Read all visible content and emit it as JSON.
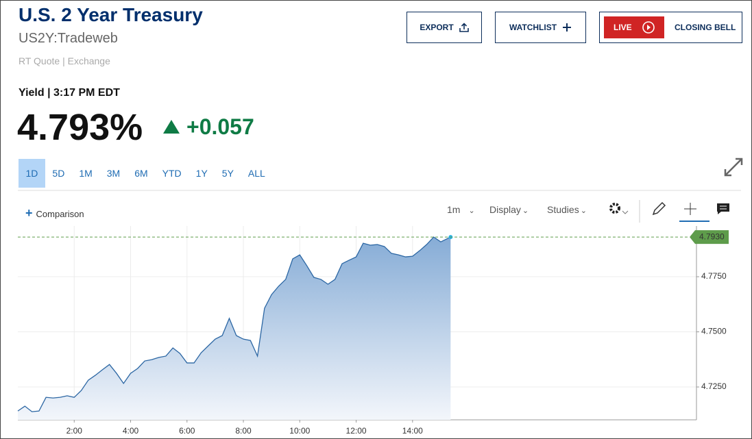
{
  "header": {
    "title": "U.S. 2 Year Treasury",
    "symbol": "US2Y:Tradeweb",
    "quote_source": "RT Quote | Exchange"
  },
  "actions": {
    "export": "EXPORT",
    "watchlist": "WATCHLIST",
    "live": "LIVE",
    "closing_bell": "CLOSING BELL"
  },
  "quote": {
    "label": "Yield | 3:17 PM EDT",
    "price": "4.793%",
    "change": "+0.057"
  },
  "ranges": [
    "1D",
    "5D",
    "1M",
    "3M",
    "6M",
    "YTD",
    "1Y",
    "5Y",
    "ALL"
  ],
  "toolbar": {
    "comparison": "Comparison",
    "interval": "1m",
    "display": "Display",
    "studies": "Studies"
  },
  "chart_data": {
    "type": "area",
    "color": "#2b66a3",
    "x": [
      0,
      0.25,
      0.5,
      0.75,
      1,
      1.25,
      1.5,
      1.75,
      2,
      2.25,
      2.5,
      2.75,
      3,
      3.25,
      3.5,
      3.75,
      4,
      4.25,
      4.5,
      4.75,
      5,
      5.25,
      5.5,
      5.75,
      6,
      6.25,
      6.5,
      6.75,
      7,
      7.25,
      7.5,
      7.75,
      8,
      8.25,
      8.5,
      8.75,
      9,
      9.25,
      9.5,
      9.75,
      10,
      10.25,
      10.5,
      10.75,
      11,
      11.25,
      11.5,
      11.75,
      12,
      12.25,
      12.5,
      12.75,
      13,
      13.25,
      13.5,
      13.75,
      14,
      14.25,
      14.5,
      14.75,
      15,
      15.35
    ],
    "values": [
      4.7141,
      4.7163,
      4.7138,
      4.7141,
      4.7203,
      4.72,
      4.7203,
      4.721,
      4.7203,
      4.7234,
      4.7281,
      4.7303,
      4.7328,
      4.7352,
      4.7312,
      4.7266,
      4.7312,
      4.7334,
      4.7368,
      4.7374,
      4.7384,
      4.739,
      4.7427,
      4.7402,
      4.7359,
      4.7359,
      4.7405,
      4.7436,
      4.7467,
      4.7483,
      4.7561,
      4.7483,
      4.7467,
      4.7461,
      4.739,
      4.7607,
      4.7669,
      4.7707,
      4.7738,
      4.7831,
      4.7849,
      4.78,
      4.7747,
      4.7738,
      4.7716,
      4.7738,
      4.7809,
      4.7825,
      4.784,
      4.7902,
      4.7893,
      4.7896,
      4.7887,
      4.7856,
      4.7849,
      4.784,
      4.7843,
      4.7868,
      4.7896,
      4.793,
      4.7908,
      4.793
    ],
    "xlim": [
      0,
      24.07
    ],
    "ylim": [
      4.7101,
      4.798
    ],
    "xticks": [
      {
        "value": 2,
        "label": "2:00"
      },
      {
        "value": 4,
        "label": "4:00"
      },
      {
        "value": 6,
        "label": "6:00"
      },
      {
        "value": 8,
        "label": "8:00"
      },
      {
        "value": 10,
        "label": "10:00"
      },
      {
        "value": 12,
        "label": "12:00"
      },
      {
        "value": 14,
        "label": "14:00"
      }
    ],
    "yticks": [
      {
        "value": 4.725,
        "label": "4.7250"
      },
      {
        "value": 4.75,
        "label": "4.7500"
      },
      {
        "value": 4.775,
        "label": "4.7750"
      }
    ],
    "reference_line": {
      "value": 4.793,
      "label": "4.7930",
      "color": "#5e9c4b"
    },
    "grid": true
  }
}
